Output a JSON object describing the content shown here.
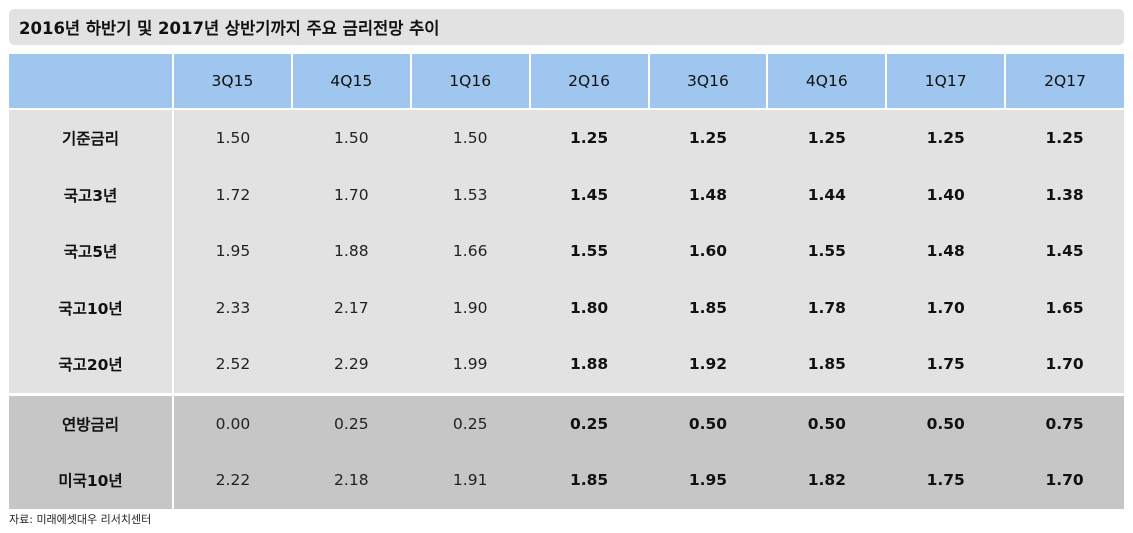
{
  "title": "2016년 하반기 및 2017년 상반기까지 주요 금리전망 추이",
  "table": {
    "columns": [
      "3Q15",
      "4Q15",
      "1Q16",
      "2Q16",
      "3Q16",
      "4Q16",
      "1Q17",
      "2Q17"
    ],
    "group1": [
      {
        "label": "기준금리",
        "values": [
          "1.50",
          "1.50",
          "1.50",
          "1.25",
          "1.25",
          "1.25",
          "1.25",
          "1.25"
        ]
      },
      {
        "label": "국고3년",
        "values": [
          "1.72",
          "1.70",
          "1.53",
          "1.45",
          "1.48",
          "1.44",
          "1.40",
          "1.38"
        ]
      },
      {
        "label": "국고5년",
        "values": [
          "1.95",
          "1.88",
          "1.66",
          "1.55",
          "1.60",
          "1.55",
          "1.48",
          "1.45"
        ]
      },
      {
        "label": "국고10년",
        "values": [
          "2.33",
          "2.17",
          "1.90",
          "1.80",
          "1.85",
          "1.78",
          "1.70",
          "1.65"
        ]
      },
      {
        "label": "국고20년",
        "values": [
          "2.52",
          "2.29",
          "1.99",
          "1.88",
          "1.92",
          "1.85",
          "1.75",
          "1.70"
        ]
      }
    ],
    "group2": [
      {
        "label": "연방금리",
        "values": [
          "0.00",
          "0.25",
          "0.25",
          "0.25",
          "0.50",
          "0.50",
          "0.50",
          "0.75"
        ]
      },
      {
        "label": "미국10년",
        "values": [
          "2.22",
          "2.18",
          "1.91",
          "1.85",
          "1.95",
          "1.82",
          "1.75",
          "1.70"
        ]
      }
    ]
  },
  "source": "자료: 미래에셋대우 리서치센터"
}
